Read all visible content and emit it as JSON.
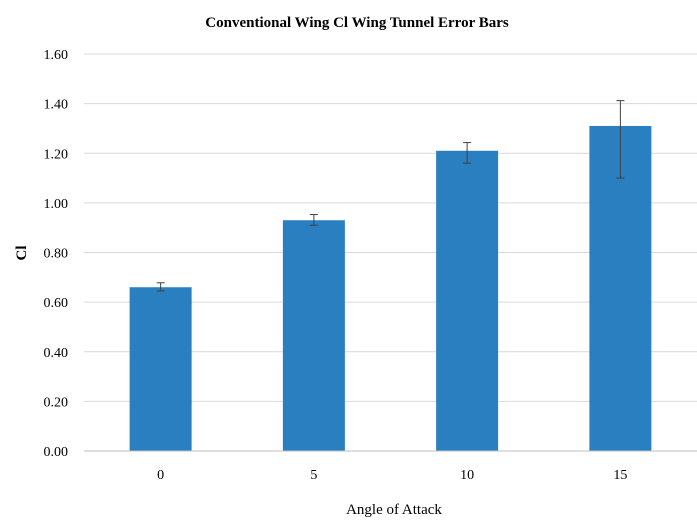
{
  "chart_data": {
    "type": "bar",
    "title": "Conventional Wing Cl Wing Tunnel Error Bars",
    "xlabel": "Angle of Attack",
    "ylabel": "Cl",
    "categories": [
      "0",
      "5",
      "10",
      "15"
    ],
    "values": [
      0.66,
      0.93,
      1.21,
      1.31
    ],
    "error_bars": {
      "lower": [
        0.645,
        0.91,
        1.16,
        1.1
      ],
      "upper": [
        0.678,
        0.953,
        1.243,
        1.412
      ]
    },
    "ylim": [
      0,
      1.6
    ],
    "yticks": [
      "0.00",
      "0.20",
      "0.40",
      "0.60",
      "0.80",
      "1.00",
      "1.20",
      "1.40",
      "1.60"
    ],
    "grid": true,
    "legend": "none",
    "colors": {
      "bar": "#2a7fc0",
      "grid": "#d9d9d9",
      "axis": "#bfbfbf",
      "error_bar": "#404040"
    }
  }
}
